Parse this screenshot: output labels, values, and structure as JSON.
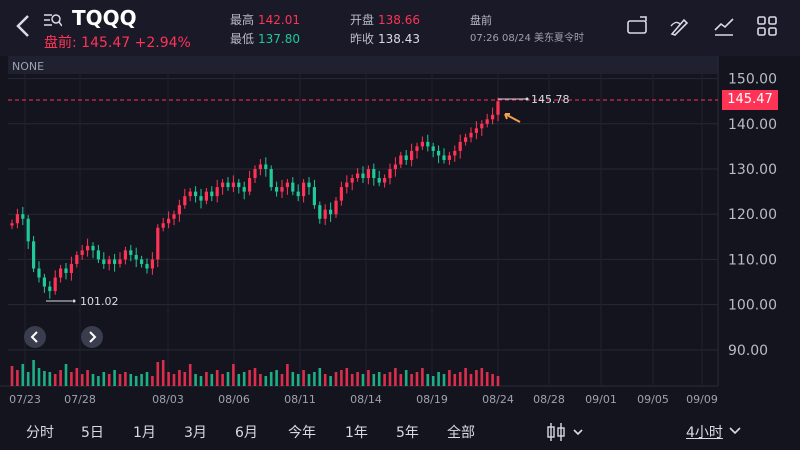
{
  "header": {
    "symbol": "TQQQ",
    "premarket_label": "盘前: 145.47 +2.94%",
    "high_label": "最高",
    "high_value": "142.01",
    "low_label": "最低",
    "low_value": "137.80",
    "open_label": "开盘",
    "open_value": "138.66",
    "prev_close_label": "昨收",
    "prev_close_value": "138.43",
    "session_label": "盘前",
    "session_time": "07:26 08/24 美东夏令时"
  },
  "chart": {
    "indicator_label": "NONE",
    "current_price_tag": "145.47",
    "high_annotation": "145.78",
    "low_annotation": "101.02",
    "y_ticks": [
      "150.00",
      "140.00",
      "130.00",
      "120.00",
      "110.00",
      "100.00",
      "90.00"
    ],
    "x_ticks": [
      "07/23",
      "07/28",
      "08/03",
      "08/06",
      "08/11",
      "08/14",
      "08/19",
      "08/24",
      "08/28",
      "09/01",
      "09/05",
      "09/09"
    ]
  },
  "periods": [
    "分时",
    "5日",
    "1月",
    "3月",
    "6月",
    "今年",
    "1年",
    "5年",
    "全部"
  ],
  "interval_label": "4小时",
  "colors": {
    "up": "#ff3355",
    "down": "#20c997",
    "background": "#14141f"
  },
  "chart_data": {
    "type": "candlestick",
    "ylim": [
      82,
      155
    ],
    "y_tick_values": [
      150,
      140,
      130,
      120,
      110,
      100,
      90
    ],
    "x_tick_labels": [
      "07/23",
      "07/28",
      "08/03",
      "08/06",
      "08/11",
      "08/14",
      "08/19",
      "08/24",
      "08/28",
      "09/01",
      "09/05",
      "09/09"
    ],
    "close": [
      118,
      120,
      119,
      114,
      108,
      106,
      104,
      103,
      106,
      108,
      107,
      109,
      111,
      112,
      113,
      112,
      110,
      109,
      110,
      109,
      110,
      112,
      111,
      110,
      109,
      108,
      110,
      117,
      118,
      119,
      120,
      122,
      124,
      125,
      124,
      123,
      125,
      124,
      126,
      127,
      126,
      127,
      126,
      125,
      128,
      130,
      131,
      130,
      126,
      125,
      126,
      127,
      125,
      124,
      127,
      126,
      122,
      119,
      121,
      120,
      123,
      126,
      127,
      128,
      129,
      128,
      130,
      128,
      127,
      128,
      130,
      131,
      133,
      132,
      134,
      135,
      136,
      135,
      134,
      133,
      132,
      133,
      134,
      136,
      137,
      138,
      139,
      140,
      141,
      142,
      145
    ],
    "volume": [
      20,
      16,
      22,
      14,
      26,
      18,
      15,
      14,
      12,
      16,
      22,
      14,
      18,
      12,
      16,
      12,
      10,
      14,
      12,
      16,
      12,
      14,
      12,
      10,
      12,
      14,
      10,
      24,
      26,
      14,
      12,
      16,
      14,
      22,
      12,
      10,
      14,
      12,
      16,
      12,
      14,
      22,
      12,
      14,
      16,
      18,
      12,
      10,
      14,
      16,
      12,
      22,
      14,
      12,
      16,
      12,
      14,
      18,
      12,
      10,
      14,
      16,
      18,
      12,
      14,
      12,
      16,
      12,
      14,
      12,
      14,
      18,
      12,
      16,
      12,
      14,
      18,
      12,
      10,
      14,
      12,
      16,
      12,
      14,
      18,
      12,
      16,
      18,
      14,
      12,
      10
    ]
  }
}
